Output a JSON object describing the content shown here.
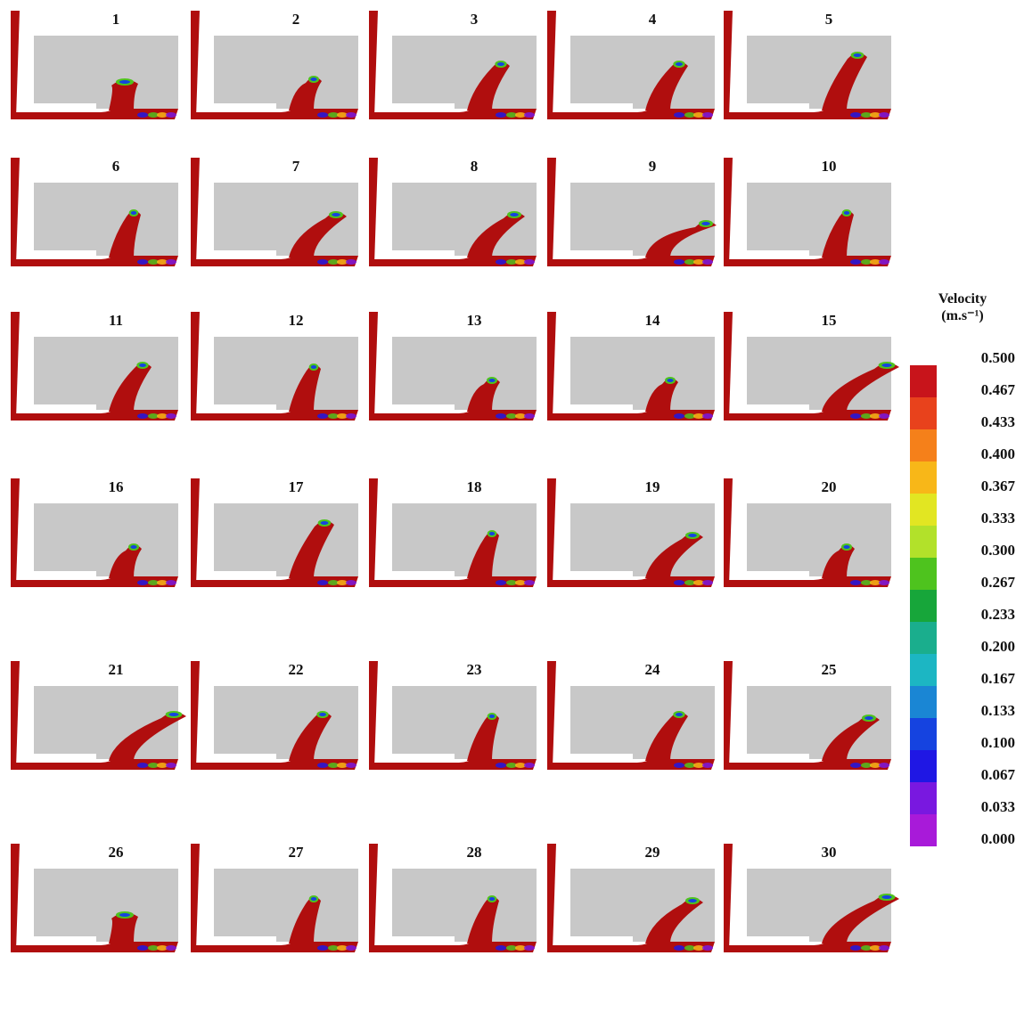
{
  "panels": [
    {
      "label": "1",
      "jet": "splash"
    },
    {
      "label": "2",
      "jet": "short"
    },
    {
      "label": "3",
      "jet": "medium"
    },
    {
      "label": "4",
      "jet": "medium"
    },
    {
      "label": "5",
      "jet": "tall"
    },
    {
      "label": "6",
      "jet": "narrow"
    },
    {
      "label": "7",
      "jet": "wide"
    },
    {
      "label": "8",
      "jet": "wide"
    },
    {
      "label": "9",
      "jet": "flat"
    },
    {
      "label": "10",
      "jet": "narrow"
    },
    {
      "label": "11",
      "jet": "medium"
    },
    {
      "label": "12",
      "jet": "narrow"
    },
    {
      "label": "13",
      "jet": "short"
    },
    {
      "label": "14",
      "jet": "short"
    },
    {
      "label": "15",
      "jet": "spread"
    },
    {
      "label": "16",
      "jet": "short"
    },
    {
      "label": "17",
      "jet": "tall"
    },
    {
      "label": "18",
      "jet": "narrow"
    },
    {
      "label": "19",
      "jet": "wide"
    },
    {
      "label": "20",
      "jet": "short"
    },
    {
      "label": "21",
      "jet": "spread"
    },
    {
      "label": "22",
      "jet": "medium"
    },
    {
      "label": "23",
      "jet": "narrow"
    },
    {
      "label": "24",
      "jet": "medium"
    },
    {
      "label": "25",
      "jet": "wide"
    },
    {
      "label": "26",
      "jet": "splash"
    },
    {
      "label": "27",
      "jet": "narrow"
    },
    {
      "label": "28",
      "jet": "narrow"
    },
    {
      "label": "29",
      "jet": "wide"
    },
    {
      "label": "30",
      "jet": "spread"
    }
  ],
  "legend": {
    "title_line1": "Velocity",
    "title_line2": "(m.s⁻¹)",
    "ticks": [
      "0.500",
      "0.467",
      "0.433",
      "0.400",
      "0.367",
      "0.333",
      "0.300",
      "0.267",
      "0.233",
      "0.200",
      "0.167",
      "0.133",
      "0.100",
      "0.067",
      "0.033",
      "0.000"
    ],
    "colors": [
      "#c8141b",
      "#e8421c",
      "#f5801a",
      "#f8b718",
      "#e2e622",
      "#b2e12a",
      "#4ec31e",
      "#17a63a",
      "#1aae8d",
      "#1cb6c3",
      "#1a86d4",
      "#1543e0",
      "#1f17e4",
      "#7918e0",
      "#a81ad9"
    ]
  },
  "colors": {
    "steel": "#b00e0e",
    "obstacle": "#c8c8c8",
    "background": "#ffffff"
  }
}
